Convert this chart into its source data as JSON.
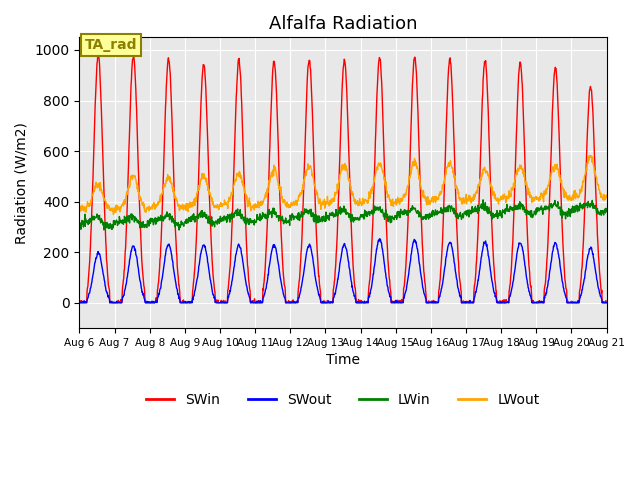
{
  "title": "Alfalfa Radiation",
  "ylabel": "Radiation (W/m2)",
  "xlabel": "Time",
  "ylim": [
    -100,
    1050
  ],
  "annotation": "TA_rad",
  "annotation_color": "#8B8000",
  "annotation_bg": "#FFFF99",
  "background_color": "#E8E8E8",
  "grid_color": "white",
  "series": [
    "SWin",
    "SWout",
    "LWin",
    "LWout"
  ],
  "colors": [
    "red",
    "blue",
    "green",
    "orange"
  ],
  "tick_labels": [
    "Aug 6",
    "Aug 7",
    "Aug 8",
    "Aug 9",
    "Aug 10",
    "Aug 11",
    "Aug 12",
    "Aug 13",
    "Aug 14",
    "Aug 15",
    "Aug 16",
    "Aug 17",
    "Aug 18",
    "Aug 19",
    "Aug 20",
    "Aug 21"
  ],
  "n_days": 15,
  "title_fontsize": 13,
  "axis_fontsize": 10,
  "legend_fontsize": 10
}
